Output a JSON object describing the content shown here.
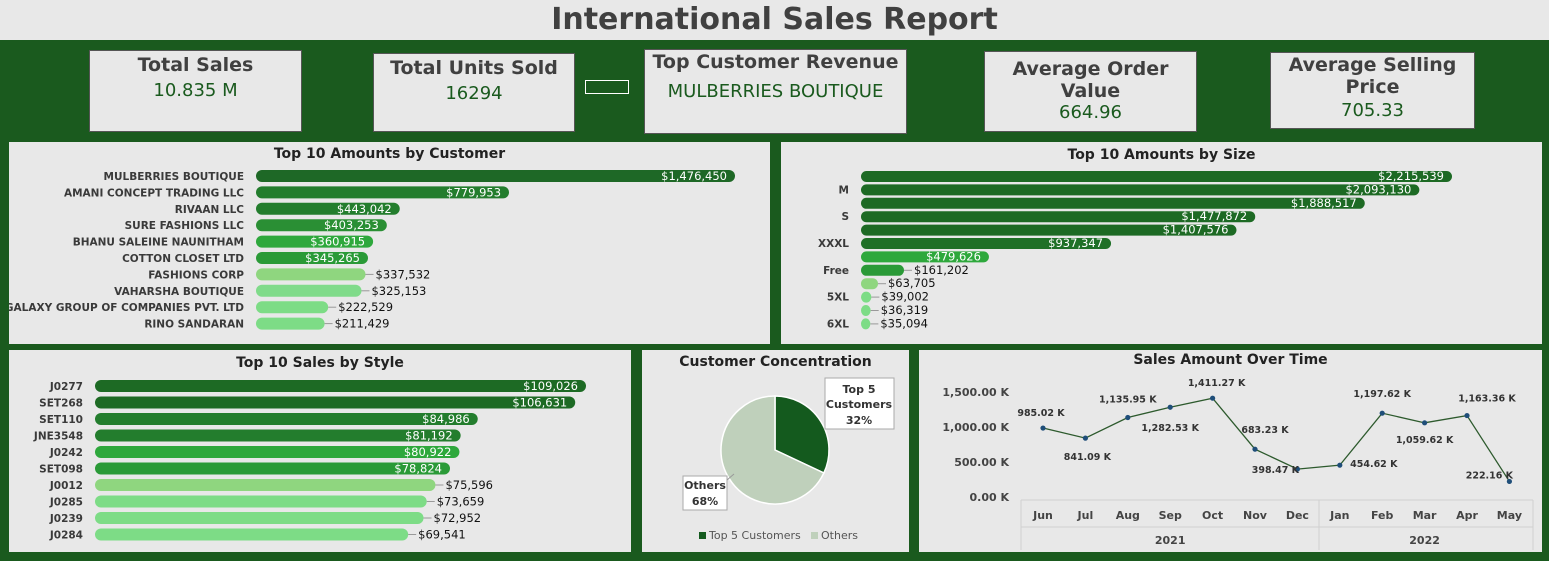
{
  "title": "International Sales Report",
  "kpis": {
    "total_sales": {
      "label": "Total Sales",
      "value": "10.835  M"
    },
    "total_units": {
      "label": "Total Units Sold",
      "value": "16294"
    },
    "top_customer": {
      "label": "Top Customer Revenue",
      "value": "MULBERRIES BOUTIQUE"
    },
    "avg_order": {
      "label": "Average Order Value",
      "value": "664.96"
    },
    "avg_price": {
      "label": "Average Selling Price",
      "value": "705.33"
    }
  },
  "colors": {
    "dark": "#1a5a1e",
    "bar_dark": "#1f6b27",
    "bar_mid": "#2aa23a",
    "bar_light": "#7ddc86",
    "bar_pale": "#92d68a",
    "pie_dark": "#145a1e",
    "pie_light": "#bfd0bb",
    "line": "#2d5a2d",
    "point": "#1f4e79"
  },
  "chart_data": [
    {
      "id": "customer",
      "type": "bar",
      "title": "Top 10 Amounts by Customer",
      "categories": [
        "MULBERRIES BOUTIQUE",
        "AMANI CONCEPT TRADING LLC",
        "RIVAAN LLC",
        "SURE FASHIONS LLC",
        "BHANU SALEINE NAUNITHAM",
        "COTTON CLOSET LTD",
        "FASHIONS CORP",
        "VAHARSHA BOUTIQUE",
        "GALAXY GROUP OF COMPANIES PVT. LTD",
        "RINO SANDARAN"
      ],
      "values": [
        1476450,
        779953,
        443042,
        403253,
        360915,
        345265,
        337532,
        325153,
        222529,
        211429
      ],
      "labels": [
        "$1,476,450",
        "$779,953",
        "$443,042",
        "$403,253",
        "$360,915",
        "$345,265",
        "$337,532",
        "$325,153",
        "$222,529",
        "$211,429"
      ]
    },
    {
      "id": "size",
      "type": "bar",
      "title": "Top 10 Amounts by Size",
      "categories": [
        "",
        "M",
        "",
        "S",
        "",
        "XXXL",
        "",
        "Free",
        "",
        "5XL",
        "",
        "6XL"
      ],
      "values": [
        2215539,
        2093130,
        1888517,
        1477872,
        1407576,
        937347,
        479626,
        161202,
        63705,
        39002,
        36319,
        35094
      ],
      "labels": [
        "$2,215,539",
        "$2,093,130",
        "$1,888,517",
        "$1,477,872",
        "$1,407,576",
        "$937,347",
        "$479,626",
        "$161,202",
        "$63,705",
        "$39,002",
        "$36,319",
        "$35,094"
      ]
    },
    {
      "id": "style",
      "type": "bar",
      "title": "Top 10 Sales by Style",
      "categories": [
        "J0277",
        "SET268",
        "SET110",
        "JNE3548",
        "J0242",
        "SET098",
        "J0012",
        "J0285",
        "J0239",
        "J0284"
      ],
      "values": [
        109026,
        106631,
        84986,
        81192,
        80922,
        78824,
        75596,
        73659,
        72952,
        69541
      ],
      "labels": [
        "$109,026",
        "$106,631",
        "$84,986",
        "$81,192",
        "$80,922",
        "$78,824",
        "$75,596",
        "$73,659",
        "$72,952",
        "$69,541"
      ]
    },
    {
      "id": "concentration",
      "type": "pie",
      "title": "Customer Concentration",
      "slices": [
        {
          "name": "Top 5 Customers",
          "value": 32,
          "label_name": "Top 5 Customers",
          "label_pct": "32%"
        },
        {
          "name": "Others",
          "value": 68,
          "label_name": "Others",
          "label_pct": "68%"
        }
      ],
      "legend": [
        "Top 5 Customers",
        "Others"
      ]
    },
    {
      "id": "time",
      "type": "line",
      "title": "Sales Amount Over Time",
      "x": [
        "Jun",
        "Jul",
        "Aug",
        "Sep",
        "Oct",
        "Nov",
        "Dec",
        "Jan",
        "Feb",
        "Mar",
        "Apr",
        "May"
      ],
      "years": [
        {
          "label": "2021",
          "span": 7
        },
        {
          "label": "2022",
          "span": 5
        }
      ],
      "values": [
        985.02,
        841.09,
        1135.95,
        1282.53,
        1411.27,
        683.23,
        398.47,
        454.62,
        1197.62,
        1059.62,
        1163.36,
        222.16
      ],
      "labels": [
        "985.02 K",
        "841.09 K",
        "1,135.95 K",
        "1,282.53 K",
        "1,411.27 K",
        "683.23 K",
        "398.47 K",
        "454.62 K",
        "1,197.62 K",
        "1,059.62 K",
        "1,163.36 K",
        "222.16 K"
      ],
      "yticks": [
        "0.00 K",
        "500.00 K",
        "1,000.00 K",
        "1,500.00 K"
      ],
      "ylim": [
        0,
        1500
      ]
    }
  ]
}
